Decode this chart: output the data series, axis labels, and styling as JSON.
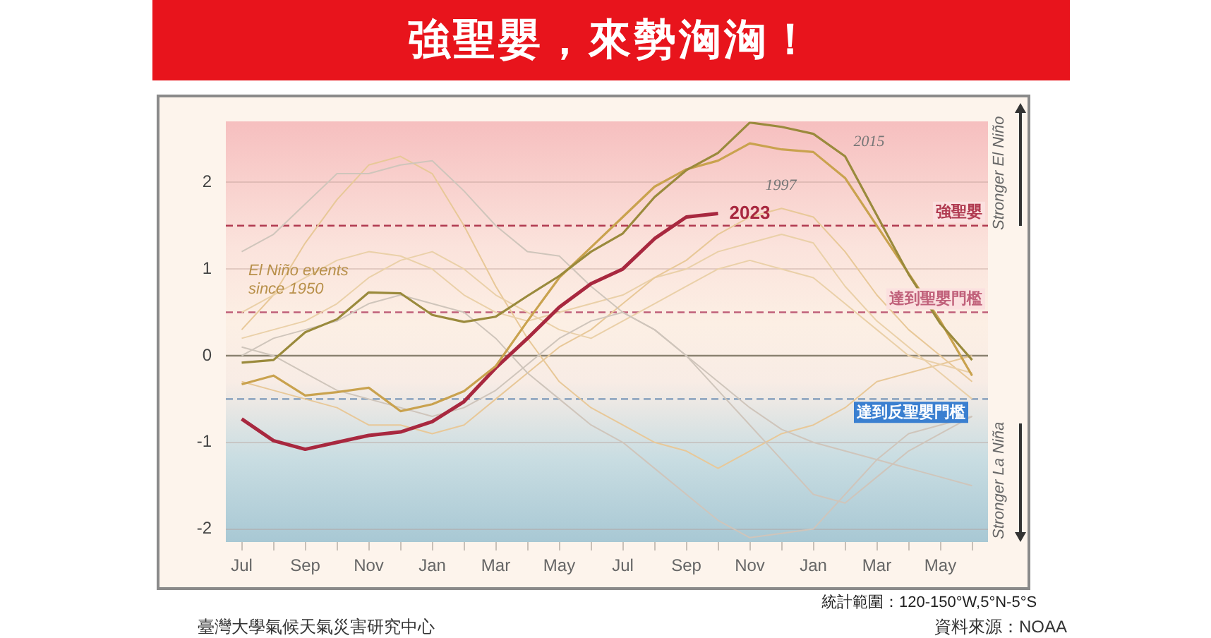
{
  "chart_data": {
    "type": "line",
    "title": "強聖嬰，來勢洶洶！",
    "categories": [
      "Jul",
      null,
      "Sep",
      null,
      "Nov",
      null,
      "Jan",
      null,
      "Mar",
      null,
      "May",
      null,
      "Jul",
      null,
      "Sep",
      null,
      "Nov",
      null,
      "Jan",
      null,
      "Mar",
      null,
      "May",
      null
    ],
    "series": [
      {
        "color": "#e8c898",
        "values": [
          0.3,
          0.7,
          1.3,
          1.8,
          2.2,
          2.3,
          2.1,
          1.5,
          0.8,
          0.2,
          -0.3,
          -0.6,
          -0.8,
          -1.0,
          -1.1,
          -1.3,
          -1.1,
          -0.9,
          -0.8,
          -0.6,
          -0.3,
          -0.2,
          -0.1,
          0.0
        ]
      },
      {
        "color": "#ead0a8",
        "values": [
          0.5,
          0.7,
          0.9,
          1.1,
          1.2,
          1.15,
          1.0,
          0.7,
          0.5,
          0.4,
          0.5,
          0.6,
          0.7,
          0.9,
          1.0,
          1.2,
          1.3,
          1.4,
          1.3,
          0.8,
          0.4,
          0.1,
          -0.2,
          -0.5
        ]
      },
      {
        "color": "#e8c898",
        "values": [
          -0.3,
          -0.4,
          -0.5,
          -0.6,
          -0.8,
          -0.8,
          -0.9,
          -0.8,
          -0.5,
          -0.2,
          0.1,
          0.3,
          0.6,
          0.9,
          1.1,
          1.4,
          1.6,
          1.7,
          1.6,
          1.2,
          0.7,
          0.3,
          0.0,
          -0.3
        ]
      },
      {
        "color": "#cfc5bb",
        "values": [
          0.0,
          0.2,
          0.3,
          0.4,
          0.6,
          0.7,
          0.6,
          0.5,
          0.2,
          -0.2,
          -0.5,
          -0.8,
          -1.0,
          -1.3,
          -1.6,
          -1.9,
          -2.1,
          -2.05,
          -2.0,
          -1.6,
          -1.2,
          -0.9,
          -0.8,
          -0.7
        ]
      },
      {
        "color": "#ead0a8",
        "values": [
          0.2,
          0.3,
          0.4,
          0.6,
          0.9,
          1.1,
          1.2,
          1.0,
          0.7,
          0.5,
          0.3,
          0.2,
          0.4,
          0.6,
          0.8,
          1.0,
          1.1,
          1.0,
          0.9,
          0.6,
          0.3,
          0.0,
          -0.1,
          -0.2
        ]
      },
      {
        "color": "#cfc5bb",
        "values": [
          0.1,
          0.0,
          -0.2,
          -0.4,
          -0.5,
          -0.6,
          -0.7,
          -0.6,
          -0.4,
          -0.1,
          0.2,
          0.4,
          0.5,
          0.3,
          0.0,
          -0.4,
          -0.8,
          -1.2,
          -1.6,
          -1.7,
          -1.4,
          -1.1,
          -0.9,
          -0.7
        ]
      },
      {
        "color": "#cfc5bb",
        "values": [
          1.2,
          1.4,
          1.75,
          2.1,
          2.1,
          2.2,
          2.25,
          1.9,
          1.5,
          1.2,
          1.15,
          0.8,
          0.5,
          0.3,
          0.0,
          -0.3,
          -0.6,
          -0.85,
          -1.0,
          -1.1,
          -1.2,
          -1.3,
          -1.4,
          -1.5
        ]
      },
      {
        "name": "2023",
        "color": "#a8283f",
        "values": [
          -0.73,
          -0.98,
          -1.08,
          -1.0,
          -0.92,
          -0.88,
          -0.76,
          -0.53,
          -0.14,
          0.2,
          0.56,
          0.83,
          1.0,
          1.35,
          1.6,
          1.64,
          null,
          null,
          null,
          null,
          null,
          null,
          null,
          null
        ]
      },
      {
        "name": "1997",
        "color": "#c9a24e",
        "values": [
          -0.33,
          -0.23,
          -0.46,
          -0.42,
          -0.37,
          -0.64,
          -0.56,
          -0.41,
          -0.12,
          0.4,
          0.9,
          1.25,
          1.6,
          1.95,
          2.15,
          2.25,
          2.45,
          2.38,
          2.35,
          2.05,
          1.5,
          0.95,
          0.4,
          -0.23
        ]
      },
      {
        "name": "2015",
        "color": "#9a8a3c",
        "values": [
          -0.08,
          -0.05,
          0.27,
          0.42,
          0.73,
          0.72,
          0.47,
          0.39,
          0.45,
          0.69,
          0.92,
          1.2,
          1.41,
          1.83,
          2.14,
          2.34,
          2.69,
          2.64,
          2.56,
          2.3,
          1.62,
          0.94,
          0.37,
          -0.05
        ]
      }
    ],
    "ylim": [
      -2.15,
      2.7
    ],
    "yticks": [
      -2,
      -1,
      0,
      1,
      2
    ],
    "grid": "y",
    "legend": false,
    "marker": "none",
    "line_style": "solid",
    "ref_lines": [
      {
        "axis": "y",
        "value": 1.5,
        "label": "強聖嬰",
        "color": "#b03a50",
        "line_style": "dashed"
      },
      {
        "axis": "y",
        "value": 0.5,
        "label": "達到聖嬰門檻",
        "color": "#c0607a",
        "line_style": "dashed"
      },
      {
        "axis": "y",
        "value": 0,
        "color": "#8a8270",
        "line_style": "solid"
      },
      {
        "axis": "y",
        "value": -0.5,
        "label": "達到反聖嬰門檻",
        "color": "#7b98b8",
        "line_style": "dashed"
      }
    ],
    "annotations": [
      "El Niño events since 1950",
      "Stronger El Niño",
      "Stronger La Niña",
      "統計範圍：120-150°W,5°N-5°S",
      "臺灣大學氣候天氣災害研究中心",
      "資料來源：NOAA"
    ]
  }
}
